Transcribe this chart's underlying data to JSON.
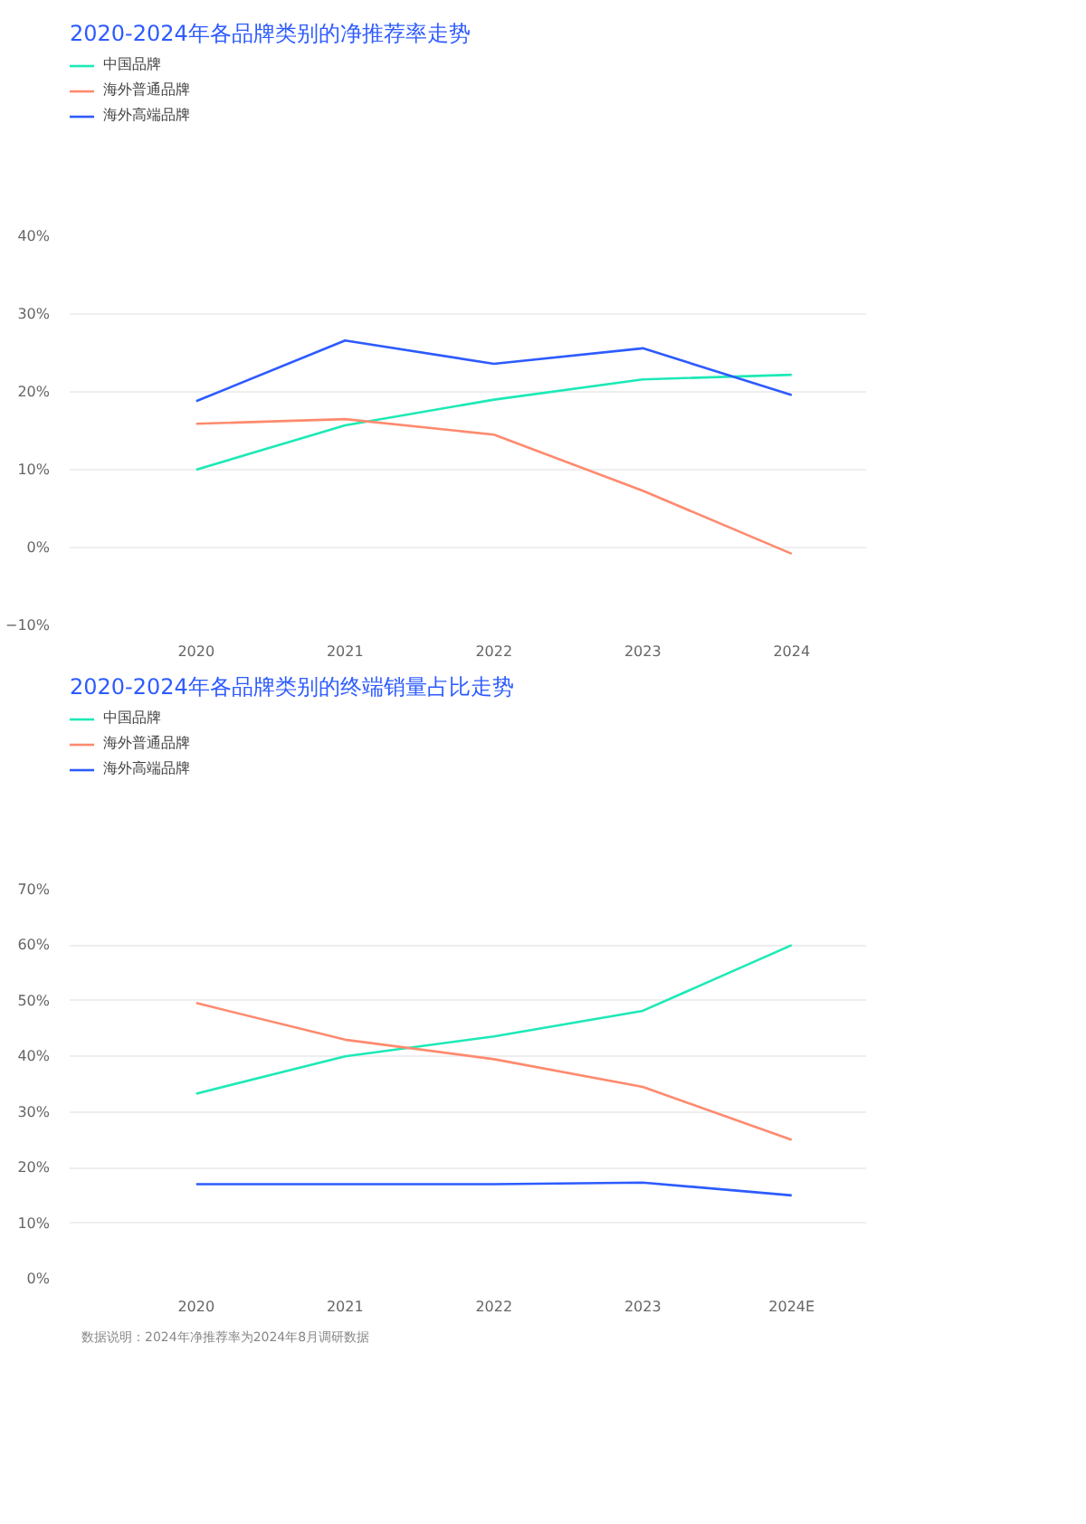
{
  "chart_data": [
    {
      "type": "line",
      "title": "2020-2024年各品牌类别的净推荐率走势",
      "categories": [
        "2020",
        "2021",
        "2022",
        "2023",
        "2024"
      ],
      "series": [
        {
          "name": "中国品牌",
          "color": "#1de9b6",
          "values": [
            10,
            15.7,
            19,
            21.6,
            22.2
          ]
        },
        {
          "name": "海外普通品牌",
          "color": "#ff8a6e",
          "values": [
            15.9,
            16.5,
            14.5,
            7.3,
            -0.8
          ]
        },
        {
          "name": "海外高端品牌",
          "color": "#2d5bff",
          "values": [
            18.8,
            26.6,
            23.6,
            25.6,
            19.6
          ]
        }
      ],
      "ylim": [
        -10,
        40
      ],
      "yticks": [
        {
          "value": -10,
          "label": "−10%"
        },
        {
          "value": 0,
          "label": "0%"
        },
        {
          "value": 10,
          "label": "10%"
        },
        {
          "value": 20,
          "label": "20%"
        },
        {
          "value": 30,
          "label": "30%"
        },
        {
          "value": 40,
          "label": "40%"
        }
      ],
      "grid": "y",
      "legend": "top left",
      "marker": "none",
      "line_style": "solid"
    },
    {
      "type": "line",
      "title": "2020-2024年各品牌类别的终端销量占比走势",
      "categories": [
        "2020",
        "2021",
        "2022",
        "2023",
        "2024E"
      ],
      "series": [
        {
          "name": "中国品牌",
          "color": "#1de9b6",
          "values": [
            33.3,
            40,
            43.6,
            48.2,
            60
          ]
        },
        {
          "name": "海外普通品牌",
          "color": "#ff8a6e",
          "values": [
            49.6,
            43,
            39.5,
            34.5,
            25
          ]
        },
        {
          "name": "海外高端品牌",
          "color": "#2d5bff",
          "values": [
            17,
            17,
            17,
            17.3,
            15
          ]
        }
      ],
      "ylim": [
        0,
        70
      ],
      "yticks": [
        {
          "value": 0,
          "label": "0%"
        },
        {
          "value": 10,
          "label": "10%"
        },
        {
          "value": 20,
          "label": "20%"
        },
        {
          "value": 30,
          "label": "30%"
        },
        {
          "value": 40,
          "label": "40%"
        },
        {
          "value": 50,
          "label": "50%"
        },
        {
          "value": 60,
          "label": "60%"
        },
        {
          "value": 70,
          "label": "70%"
        }
      ],
      "grid": "y",
      "legend": "top left",
      "marker": "none",
      "line_style": "solid",
      "annotations": [
        "数据说明：2024年净推荐率为2024年8月调研数据"
      ]
    }
  ]
}
